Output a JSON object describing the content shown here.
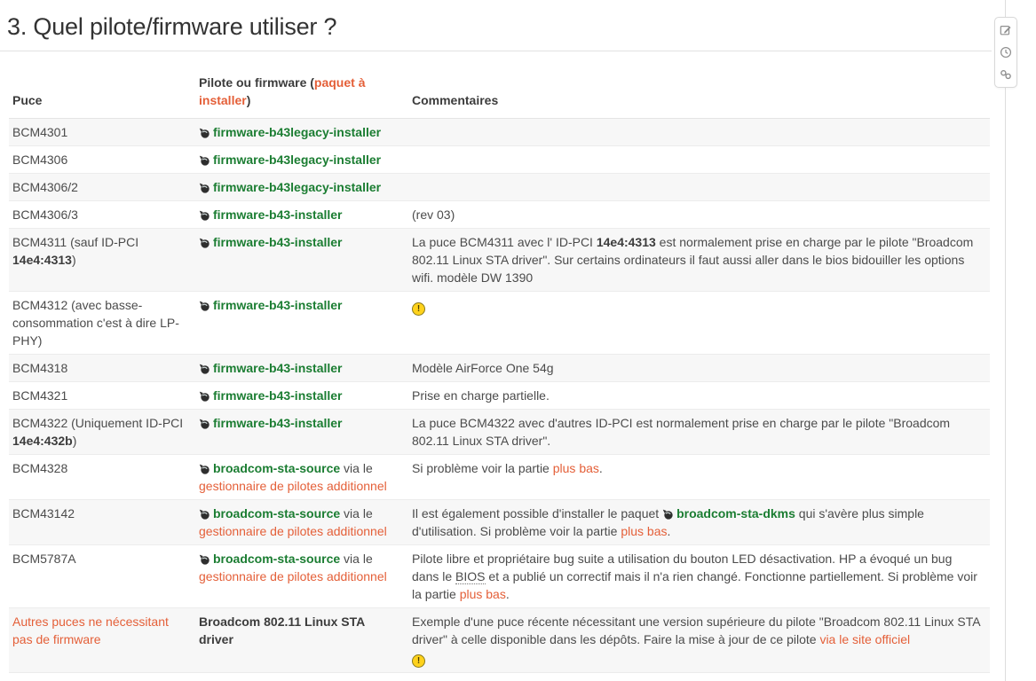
{
  "page": {
    "title": "3. Quel pilote/firmware utiliser ?"
  },
  "colors": {
    "accent_orange": "#e45f38",
    "package_green": "#1b7d32",
    "warning_yellow": "#ffd21c",
    "stripe_gray": "#f7f7f7"
  },
  "icons": {
    "warning_glyph": "!"
  },
  "toolbar": {
    "buttons": [
      "edit",
      "history",
      "backlinks"
    ]
  },
  "table": {
    "headers": {
      "puce": "Puce",
      "pilote_prefix": "Pilote ou firmware (",
      "pilote_link": "paquet à installer",
      "pilote_suffix": ")",
      "commentaires": "Commentaires"
    },
    "rows": [
      {
        "puce": [
          {
            "t": "text",
            "v": "BCM4301"
          }
        ],
        "driver": [
          {
            "t": "pkg",
            "v": "firmware-b43legacy-installer"
          }
        ],
        "comment": []
      },
      {
        "puce": [
          {
            "t": "text",
            "v": "BCM4306"
          }
        ],
        "driver": [
          {
            "t": "pkg",
            "v": "firmware-b43legacy-installer"
          }
        ],
        "comment": []
      },
      {
        "puce": [
          {
            "t": "text",
            "v": "BCM4306/2"
          }
        ],
        "driver": [
          {
            "t": "pkg",
            "v": "firmware-b43legacy-installer"
          }
        ],
        "comment": []
      },
      {
        "puce": [
          {
            "t": "text",
            "v": "BCM4306/3"
          }
        ],
        "driver": [
          {
            "t": "pkg",
            "v": "firmware-b43-installer"
          }
        ],
        "comment": [
          {
            "t": "text",
            "v": "(rev 03)"
          }
        ]
      },
      {
        "puce": [
          {
            "t": "text",
            "v": "BCM4311 (sauf ID-PCI "
          },
          {
            "t": "bold",
            "v": "14e4:4313"
          },
          {
            "t": "text",
            "v": ")"
          }
        ],
        "driver": [
          {
            "t": "pkg",
            "v": "firmware-b43-installer"
          }
        ],
        "comment": [
          {
            "t": "text",
            "v": "La puce BCM4311 avec l' ID-PCI "
          },
          {
            "t": "bold",
            "v": "14e4:4313"
          },
          {
            "t": "text",
            "v": " est normalement prise en charge par le pilote \"Broadcom 802.11 Linux STA driver\". Sur certains ordinateurs il faut aussi aller dans le bios bidouiller les options wifi. modèle DW 1390"
          }
        ]
      },
      {
        "puce": [
          {
            "t": "text",
            "v": "BCM4312 (avec basse-consommation c'est à dire LP-PHY)"
          }
        ],
        "driver": [
          {
            "t": "pkg",
            "v": "firmware-b43-installer"
          }
        ],
        "comment": [
          {
            "t": "warn"
          }
        ]
      },
      {
        "puce": [
          {
            "t": "text",
            "v": "BCM4318"
          }
        ],
        "driver": [
          {
            "t": "pkg",
            "v": "firmware-b43-installer"
          }
        ],
        "comment": [
          {
            "t": "text",
            "v": "Modèle AirForce One 54g"
          }
        ]
      },
      {
        "puce": [
          {
            "t": "text",
            "v": "BCM4321"
          }
        ],
        "driver": [
          {
            "t": "pkg",
            "v": "firmware-b43-installer"
          }
        ],
        "comment": [
          {
            "t": "text",
            "v": "Prise en charge partielle."
          }
        ]
      },
      {
        "puce": [
          {
            "t": "text",
            "v": "BCM4322 (Uniquement ID-PCI "
          },
          {
            "t": "bold",
            "v": "14e4:432b"
          },
          {
            "t": "text",
            "v": ")"
          }
        ],
        "driver": [
          {
            "t": "pkg",
            "v": "firmware-b43-installer"
          }
        ],
        "comment": [
          {
            "t": "text",
            "v": "La puce BCM4322 avec d'autres ID-PCI est normalement prise en charge par le pilote \"Broadcom 802.11 Linux STA driver\"."
          }
        ]
      },
      {
        "puce": [
          {
            "t": "text",
            "v": "BCM4328"
          }
        ],
        "driver": [
          {
            "t": "pkg",
            "v": "broadcom-sta-source"
          },
          {
            "t": "text",
            "v": " via le "
          },
          {
            "t": "link",
            "v": "gestionnaire de pilotes additionnel"
          }
        ],
        "comment": [
          {
            "t": "text",
            "v": "Si problème voir la partie "
          },
          {
            "t": "link",
            "v": "plus bas"
          },
          {
            "t": "text",
            "v": "."
          }
        ]
      },
      {
        "puce": [
          {
            "t": "text",
            "v": "BCM43142"
          }
        ],
        "driver": [
          {
            "t": "pkg",
            "v": "broadcom-sta-source"
          },
          {
            "t": "text",
            "v": " via le "
          },
          {
            "t": "link",
            "v": "gestionnaire de pilotes additionnel"
          }
        ],
        "comment": [
          {
            "t": "text",
            "v": "Il est également possible d'installer le paquet "
          },
          {
            "t": "pkg",
            "v": "broadcom-sta-dkms"
          },
          {
            "t": "text",
            "v": " qui s'avère plus simple d'utilisation. Si problème voir la partie "
          },
          {
            "t": "link",
            "v": "plus bas"
          },
          {
            "t": "text",
            "v": "."
          }
        ]
      },
      {
        "puce": [
          {
            "t": "text",
            "v": "BCM5787A"
          }
        ],
        "driver": [
          {
            "t": "pkg",
            "v": "broadcom-sta-source"
          },
          {
            "t": "text",
            "v": " via le "
          },
          {
            "t": "link",
            "v": "gestionnaire de pilotes additionnel"
          }
        ],
        "comment": [
          {
            "t": "text",
            "v": "Pilote libre et propriétaire bug suite a utilisation du bouton LED désactivation. HP a évoqué un bug dans le "
          },
          {
            "t": "abbr",
            "v": "BIOS"
          },
          {
            "t": "text",
            "v": " et a publié un correctif mais il n'a rien changé. Fonctionne partiellement. Si problème voir la partie "
          },
          {
            "t": "link",
            "v": "plus bas"
          },
          {
            "t": "text",
            "v": "."
          }
        ]
      },
      {
        "puce": [
          {
            "t": "link",
            "v": "Autres puces ne nécessitant pas de firmware"
          }
        ],
        "driver": [
          {
            "t": "bold",
            "v": "Broadcom 802.11 Linux STA driver"
          }
        ],
        "comment": [
          {
            "t": "text",
            "v": "Exemple d'une puce récente nécessitant une version supérieure du pilote \"Broadcom 802.11 Linux STA driver\" à celle disponible dans les dépôts. Faire la mise à jour de ce pilote "
          },
          {
            "t": "link",
            "v": "via le site officiel"
          },
          {
            "t": "br"
          },
          {
            "t": "warn"
          }
        ]
      }
    ]
  }
}
